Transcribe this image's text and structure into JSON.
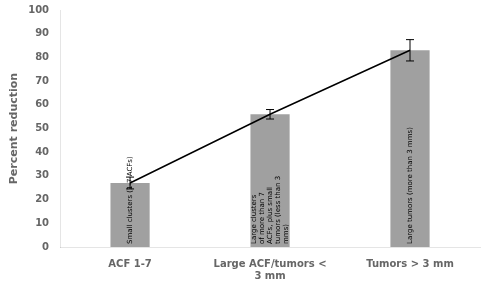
{
  "chart_data": {
    "type": "bar",
    "categories": [
      "ACF 1-7",
      "Large ACF/tumors <\n3 mm",
      "Tumors > 3 mm"
    ],
    "ylabel": "Percent reduction",
    "ylim": [
      0,
      100
    ],
    "yticks": [
      0,
      10,
      20,
      30,
      40,
      50,
      60,
      70,
      80,
      90,
      100
    ],
    "grid": false,
    "series": [
      {
        "type": "bar",
        "color": "#a0a0a0",
        "values": [
          27,
          56,
          83
        ],
        "errors": [
          2.5,
          2.0,
          4.5
        ]
      },
      {
        "type": "line",
        "color": "#000000",
        "values": [
          27,
          56,
          83
        ]
      }
    ],
    "annotations": [
      "Small clusters (1-7 ACFs)",
      "Large clusters\nof more than 7\nACFs, plus small\ntumors (less than 3\nmms)",
      "Large tumors (more than 3 mms)"
    ]
  }
}
